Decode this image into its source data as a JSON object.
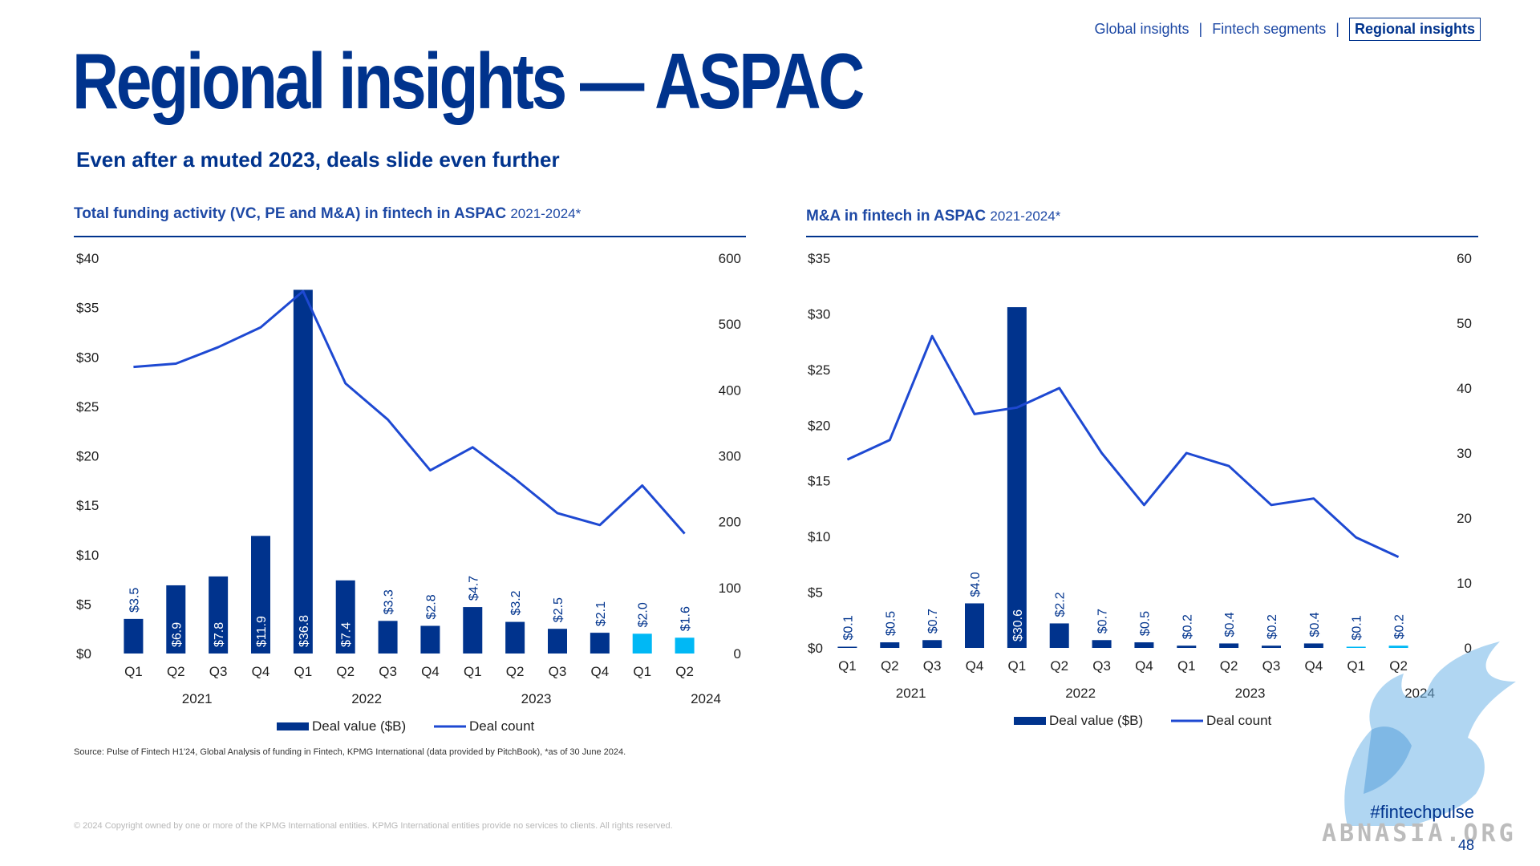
{
  "nav": {
    "items": [
      "Global insights",
      "Fintech segments",
      "Regional insights"
    ],
    "active_index": 2,
    "separator": "|"
  },
  "page_title": "Regional insights — ASPAC",
  "subtitle": "Even after a muted 2023, deals slide even further",
  "source": "Source: Pulse of Fintech H1'24, Global Analysis of funding in Fintech, KPMG International (data provided by PitchBook), *as of 30 June 2024.",
  "copyright": "© 2024 Copyright owned by one or more of the KPMG International entities. KPMG International entities provide no services to clients. All rights reserved.",
  "hashtag": "#fintechpulse",
  "page_number": "48",
  "watermark_text": "ABNASIA.ORG",
  "colors": {
    "navy": "#00338d",
    "line": "#1e49d2",
    "light_blue": "#00b8f5"
  },
  "chart_data": [
    {
      "type": "bar",
      "title": "Total funding activity (VC, PE and M&A) in fintech in ASPAC",
      "period": "2021-2024*",
      "categories": [
        "Q1",
        "Q2",
        "Q3",
        "Q4",
        "Q1",
        "Q2",
        "Q3",
        "Q4",
        "Q1",
        "Q2",
        "Q3",
        "Q4",
        "Q1",
        "Q2"
      ],
      "years": [
        {
          "label": "2021",
          "start": 0,
          "end": 3
        },
        {
          "label": "2022",
          "start": 4,
          "end": 7
        },
        {
          "label": "2023",
          "start": 8,
          "end": 11
        },
        {
          "label": "2024",
          "start": 12,
          "end": 13
        }
      ],
      "series": [
        {
          "name": "Deal value ($B)",
          "axis": "left",
          "values": [
            3.5,
            6.9,
            7.8,
            11.9,
            36.8,
            7.4,
            3.3,
            2.8,
            4.7,
            3.2,
            2.5,
            2.1,
            2.0,
            1.6
          ],
          "labels": [
            "$3.5",
            "$6.9",
            "$7.8",
            "$11.9",
            "$36.8",
            "$7.4",
            "$3.3",
            "$2.8",
            "$4.7",
            "$3.2",
            "$2.5",
            "$2.1",
            "$2.0",
            "$1.6"
          ],
          "highlight_from": 12
        },
        {
          "name": "Deal count",
          "axis": "right",
          "values": [
            435,
            440,
            465,
            495,
            550,
            410,
            355,
            278,
            313,
            265,
            213,
            195,
            255,
            182
          ]
        }
      ],
      "y_left": {
        "min": 0,
        "max": 40,
        "ticks": [
          "$0",
          "$5",
          "$10",
          "$15",
          "$20",
          "$25",
          "$30",
          "$35",
          "$40"
        ]
      },
      "y_right": {
        "min": 0,
        "max": 600,
        "ticks": [
          "0",
          "100",
          "200",
          "300",
          "400",
          "500",
          "600"
        ]
      },
      "legend": [
        "Deal value ($B)",
        "Deal count"
      ],
      "legend_position": "bottom"
    },
    {
      "type": "bar",
      "title": "M&A in fintech in ASPAC",
      "period": "2021-2024*",
      "categories": [
        "Q1",
        "Q2",
        "Q3",
        "Q4",
        "Q1",
        "Q2",
        "Q3",
        "Q4",
        "Q1",
        "Q2",
        "Q3",
        "Q4",
        "Q1",
        "Q2"
      ],
      "years": [
        {
          "label": "2021",
          "start": 0,
          "end": 3
        },
        {
          "label": "2022",
          "start": 4,
          "end": 7
        },
        {
          "label": "2023",
          "start": 8,
          "end": 11
        },
        {
          "label": "2024",
          "start": 12,
          "end": 13
        }
      ],
      "series": [
        {
          "name": "Deal value ($B)",
          "axis": "left",
          "values": [
            0.1,
            0.5,
            0.7,
            4.0,
            30.6,
            2.2,
            0.7,
            0.5,
            0.2,
            0.4,
            0.2,
            0.4,
            0.1,
            0.2
          ],
          "labels": [
            "$0.1",
            "$0.5",
            "$0.7",
            "$4.0",
            "$30.6",
            "$2.2",
            "$0.7",
            "$0.5",
            "$0.2",
            "$0.4",
            "$0.2",
            "$0.4",
            "$0.1",
            "$0.2"
          ],
          "highlight_from": 12
        },
        {
          "name": "Deal count",
          "axis": "right",
          "values": [
            29,
            32,
            48,
            36,
            37,
            40,
            30,
            22,
            30,
            28,
            22,
            23,
            17,
            14
          ]
        }
      ],
      "y_left": {
        "min": 0,
        "max": 35,
        "ticks": [
          "$0",
          "$5",
          "$10",
          "$15",
          "$20",
          "$25",
          "$30",
          "$35"
        ]
      },
      "y_right": {
        "min": 0,
        "max": 60,
        "ticks": [
          "0",
          "10",
          "20",
          "30",
          "40",
          "50",
          "60"
        ]
      },
      "legend": [
        "Deal value ($B)",
        "Deal count"
      ],
      "legend_position": "bottom"
    }
  ]
}
